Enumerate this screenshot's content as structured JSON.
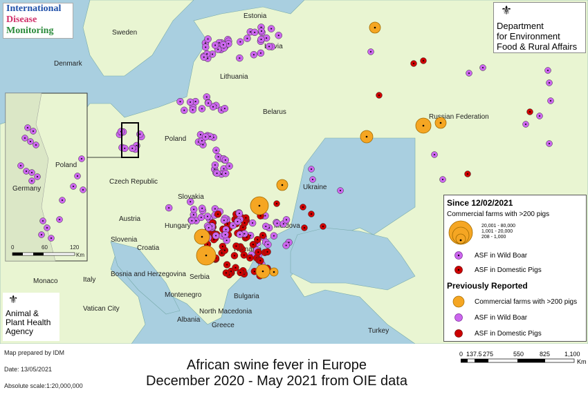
{
  "logos": {
    "idm": [
      "International",
      "Disease",
      "Monitoring"
    ],
    "defra": [
      "Department",
      "for Environment",
      "Food & Rural Affairs"
    ],
    "apha": [
      "Animal &",
      "Plant Health",
      "Agency"
    ]
  },
  "countries": {
    "estonia": "Estonia",
    "sweden": "Sweden",
    "latvia": "Latvia",
    "denmark": "Denmark",
    "lithuania": "Lithuania",
    "belarus": "Belarus",
    "russia": "Russian Federation",
    "poland": "Poland",
    "ukraine": "Ukraine",
    "czech": "Czech Republic",
    "slovakia": "Slovakia",
    "austria": "Austria",
    "hungary": "Hungary",
    "moldova": "Moldova",
    "slovenia": "Slovenia",
    "croatia": "Croatia",
    "romania": "Romania",
    "bosnia": "Bosnia and Herzegovina",
    "serbia": "Serbia",
    "italy": "Italy",
    "monaco": "Monaco",
    "montenegro": "Montenegro",
    "bulgaria": "Bulgaria",
    "vatican": "Vatican City",
    "north_macedonia": "North Macedonia",
    "albania": "Albania",
    "greece": "Greece",
    "turkey": "Turkey"
  },
  "inset": {
    "poland": "Poland",
    "germany": "Germany",
    "scale_ticks": [
      "0",
      "60",
      "120"
    ],
    "scale_unit": "Km"
  },
  "legend": {
    "since_heading": "Since 12/02/2021",
    "commercial_label": "Commercial farms with >200 pigs",
    "size_classes": [
      "20,001 - 80,000",
      "1,001 - 20,000",
      "208 - 1,000"
    ],
    "wild_boar": "ASF in Wild Boar",
    "domestic": "ASF in Domestic Pigs",
    "previous_heading": "Previously Reported",
    "prev_commercial": "Commercial farms with >200 pigs",
    "prev_wild_boar": "ASF in Wild Boar",
    "prev_domestic": "ASF in Domestic Pigs"
  },
  "colors": {
    "wild_boar": "#cc66ee",
    "domestic": "#cc0000",
    "commercial": "#f5a623",
    "land": "#e9f5d2",
    "sea": "#a9cfe0"
  },
  "footer": {
    "prepared": "Map prepared by IDM",
    "date": "Date: 13/05/2021",
    "scale": "Absolute scale:1:20,000,000",
    "title_line1": "African swine fever in Europe",
    "title_line2": "December 2020 - May 2021 from OIE data"
  },
  "scalebar": {
    "ticks": [
      "0",
      "137.5",
      "275",
      "550",
      "825",
      "1,100"
    ],
    "unit": "Km"
  }
}
